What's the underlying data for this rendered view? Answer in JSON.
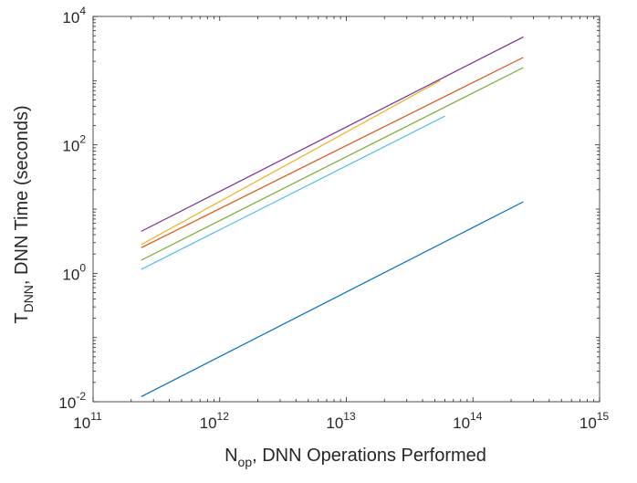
{
  "chart_data": {
    "type": "line",
    "xscale": "log",
    "yscale": "log",
    "xlim": [
      100000000000.0,
      1000000000000000.0
    ],
    "ylim": [
      0.01,
      10000
    ],
    "grid": false,
    "legend": "none",
    "xlabel": {
      "main": "N",
      "sub": "op",
      "rest": ", DNN Operations Performed"
    },
    "ylabel": {
      "main": "T",
      "sub": "DNN",
      "rest": ", DNN Time (seconds)"
    },
    "xticks": [
      {
        "value": 100000000000.0,
        "base": "10",
        "exp": "11"
      },
      {
        "value": 1000000000000.0,
        "base": "10",
        "exp": "12"
      },
      {
        "value": 10000000000000.0,
        "base": "10",
        "exp": "13"
      },
      {
        "value": 100000000000000.0,
        "base": "10",
        "exp": "14"
      },
      {
        "value": 1000000000000000.0,
        "base": "10",
        "exp": "15"
      }
    ],
    "yticks": [
      {
        "value": 0.01,
        "base": "10",
        "exp": "-2"
      },
      {
        "value": 1,
        "base": "10",
        "exp": "0"
      },
      {
        "value": 100,
        "base": "10",
        "exp": "2"
      },
      {
        "value": 10000,
        "base": "10",
        "exp": "4"
      }
    ],
    "series": [
      {
        "color": "#0072BD",
        "x": [
          240000000000.0,
          250000000000000.0
        ],
        "y": [
          0.012,
          13
        ]
      },
      {
        "color": "#D95319",
        "x": [
          240000000000.0,
          250000000000000.0
        ],
        "y": [
          2.5,
          2300
        ]
      },
      {
        "color": "#EDB120",
        "x": [
          240000000000.0,
          55000000000000.0
        ],
        "y": [
          2.8,
          1000
        ]
      },
      {
        "color": "#7E2F8E",
        "x": [
          240000000000.0,
          250000000000000.0
        ],
        "y": [
          4.5,
          4800
        ]
      },
      {
        "color": "#77AC30",
        "x": [
          240000000000.0,
          250000000000000.0
        ],
        "y": [
          1.6,
          1600
        ]
      },
      {
        "color": "#4DBEEE",
        "x": [
          240000000000.0,
          60000000000000.0
        ],
        "y": [
          1.15,
          280
        ]
      }
    ]
  }
}
